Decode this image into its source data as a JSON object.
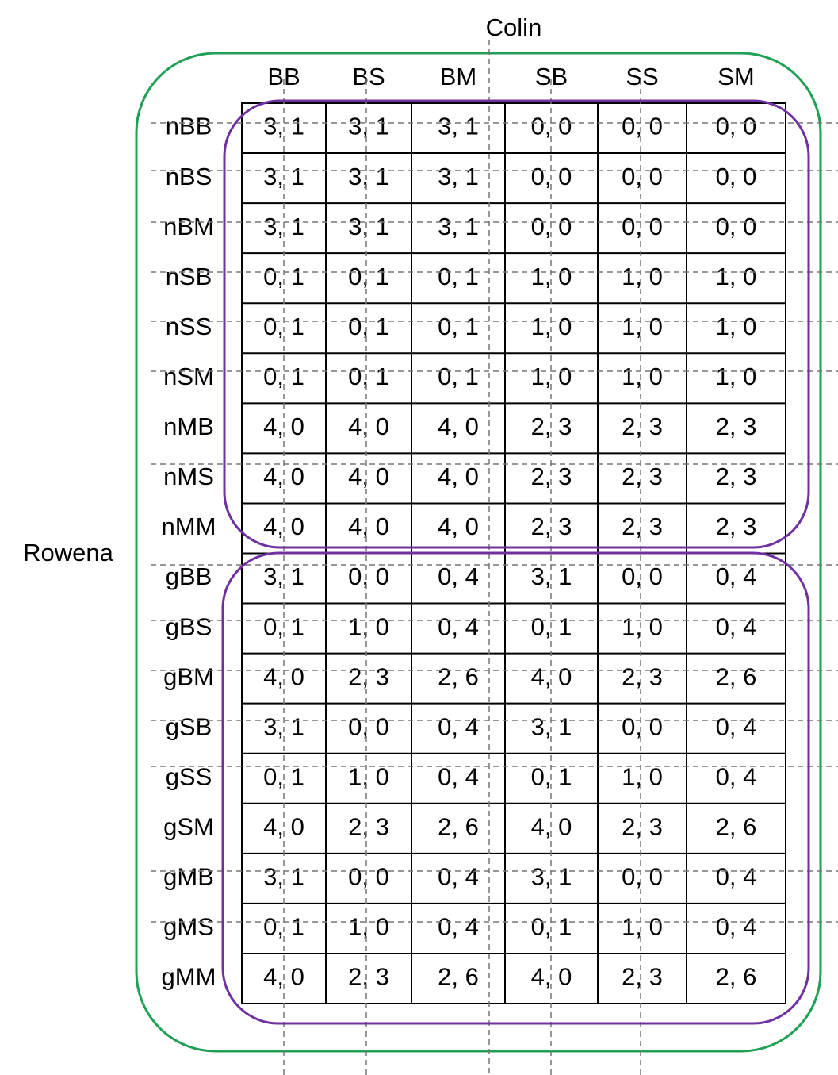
{
  "column_player": "Colin",
  "row_player": "Rowena",
  "columns": [
    "BB",
    "BS",
    "BM",
    "SB",
    "SS",
    "SM"
  ],
  "rows": [
    {
      "label": "nBB",
      "cells": [
        "3, 1",
        "3, 1",
        "3, 1",
        "0, 0",
        "0, 0",
        "0, 0"
      ]
    },
    {
      "label": "nBS",
      "cells": [
        "3, 1",
        "3, 1",
        "3, 1",
        "0, 0",
        "0, 0",
        "0, 0"
      ]
    },
    {
      "label": "nBM",
      "cells": [
        "3, 1",
        "3, 1",
        "3, 1",
        "0, 0",
        "0, 0",
        "0, 0"
      ]
    },
    {
      "label": "nSB",
      "cells": [
        "0, 1",
        "0, 1",
        "0, 1",
        "1, 0",
        "1, 0",
        "1, 0"
      ]
    },
    {
      "label": "nSS",
      "cells": [
        "0, 1",
        "0, 1",
        "0, 1",
        "1, 0",
        "1, 0",
        "1, 0"
      ]
    },
    {
      "label": "nSM",
      "cells": [
        "0, 1",
        "0, 1",
        "0, 1",
        "1, 0",
        "1, 0",
        "1, 0"
      ]
    },
    {
      "label": "nMB",
      "cells": [
        "4, 0",
        "4, 0",
        "4, 0",
        "2, 3",
        "2, 3",
        "2, 3"
      ]
    },
    {
      "label": "nMS",
      "cells": [
        "4, 0",
        "4, 0",
        "4, 0",
        "2, 3",
        "2, 3",
        "2, 3"
      ]
    },
    {
      "label": "nMM",
      "cells": [
        "4, 0",
        "4, 0",
        "4, 0",
        "2, 3",
        "2, 3",
        "2, 3"
      ]
    },
    {
      "label": "gBB",
      "cells": [
        "3, 1",
        "0, 0",
        "0, 4",
        "3, 1",
        "0, 0",
        "0, 4"
      ]
    },
    {
      "label": "gBS",
      "cells": [
        "0, 1",
        "1, 0",
        "0, 4",
        "0, 1",
        "1, 0",
        "0, 4"
      ]
    },
    {
      "label": "gBM",
      "cells": [
        "4, 0",
        "2, 3",
        "2, 6",
        "4, 0",
        "2, 3",
        "2, 6"
      ]
    },
    {
      "label": "gSB",
      "cells": [
        "3, 1",
        "0, 0",
        "0, 4",
        "3, 1",
        "0, 0",
        "0, 4"
      ]
    },
    {
      "label": "gSS",
      "cells": [
        "0, 1",
        "1, 0",
        "0, 4",
        "0, 1",
        "1, 0",
        "0, 4"
      ]
    },
    {
      "label": "gSM",
      "cells": [
        "4, 0",
        "2, 3",
        "2, 6",
        "4, 0",
        "2, 3",
        "2, 6"
      ]
    },
    {
      "label": "gMB",
      "cells": [
        "3, 1",
        "0, 0",
        "0, 4",
        "3, 1",
        "0, 0",
        "0, 4"
      ]
    },
    {
      "label": "gMS",
      "cells": [
        "0, 1",
        "1, 0",
        "0, 4",
        "0, 1",
        "1, 0",
        "0, 4"
      ]
    },
    {
      "label": "gMM",
      "cells": [
        "4, 0",
        "2, 3",
        "2, 6",
        "4, 0",
        "2, 3",
        "2, 6"
      ]
    }
  ]
}
